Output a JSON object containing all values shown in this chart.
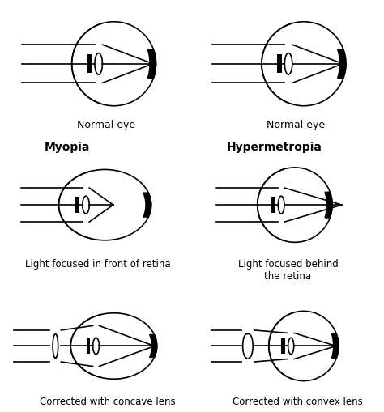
{
  "background_color": "#ffffff",
  "line_color": "#000000",
  "labels": {
    "top_left": "Normal eye",
    "top_right": "Normal eye",
    "mid_left_head": "Myopia",
    "mid_right_head": "Hypermetropia",
    "mid_left": "Light focused in front of retina",
    "mid_right": "Light focused behind\nthe retina",
    "bot_left": "Corrected with concave lens",
    "bot_right": "Corrected with convex lens"
  }
}
